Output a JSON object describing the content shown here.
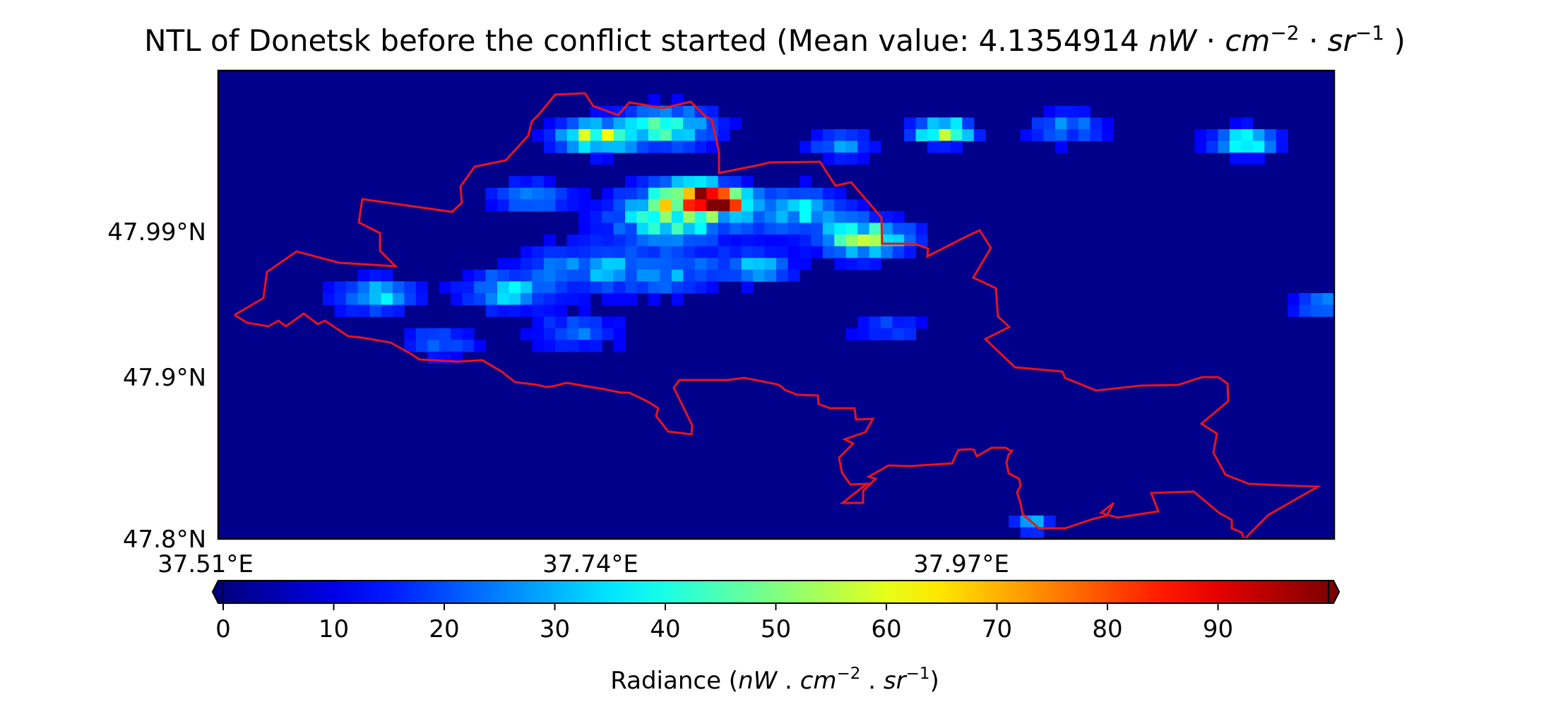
{
  "chart_data": {
    "type": "heatmap",
    "title": "NTL of Donetsk before the conflict started (Mean value: 4.1354914",
    "title_unit": {
      "base1": "nW",
      "dot1": " · ",
      "base2": "cm",
      "exp2": "−2",
      "dot2": " · ",
      "base3": "sr",
      "exp3": "−1",
      "close": " )"
    },
    "x_ticks": [
      "37.51°E",
      "37.74°E",
      "37.97°E"
    ],
    "y_ticks": [
      "47.99°N",
      "47.9°N",
      "47.8°N"
    ],
    "colorbar": {
      "colormap": "jet",
      "range": [
        0,
        100
      ],
      "ticks": [
        0,
        10,
        20,
        30,
        40,
        50,
        60,
        70,
        80,
        90
      ],
      "extend": "both",
      "label_prefix": "Radiance (",
      "label_unit": {
        "base1": "nW",
        "sep1": " . ",
        "base2": "cm",
        "exp2": "−2",
        "sep2": " . ",
        "base3": "sr",
        "exp3": "−1",
        "close": ")"
      }
    },
    "boundary_color": "#e8141c",
    "background_color": "#00008b",
    "grid": false,
    "hotspots": [
      {
        "x": 0.43,
        "y": 0.27,
        "r": 0.03,
        "v": 70
      },
      {
        "x": 0.455,
        "y": 0.28,
        "r": 0.02,
        "v": 78
      },
      {
        "x": 0.41,
        "y": 0.31,
        "r": 0.05,
        "v": 45
      },
      {
        "x": 0.34,
        "y": 0.14,
        "r": 0.03,
        "v": 55
      },
      {
        "x": 0.405,
        "y": 0.12,
        "r": 0.035,
        "v": 42
      },
      {
        "x": 0.58,
        "y": 0.36,
        "r": 0.035,
        "v": 48
      },
      {
        "x": 0.52,
        "y": 0.3,
        "r": 0.04,
        "v": 28
      },
      {
        "x": 0.33,
        "y": 0.42,
        "r": 0.045,
        "v": 22
      },
      {
        "x": 0.26,
        "y": 0.47,
        "r": 0.035,
        "v": 30
      },
      {
        "x": 0.14,
        "y": 0.48,
        "r": 0.03,
        "v": 32
      },
      {
        "x": 0.4,
        "y": 0.43,
        "r": 0.04,
        "v": 22
      },
      {
        "x": 0.48,
        "y": 0.42,
        "r": 0.03,
        "v": 26
      },
      {
        "x": 0.65,
        "y": 0.13,
        "r": 0.022,
        "v": 62
      },
      {
        "x": 0.92,
        "y": 0.15,
        "r": 0.025,
        "v": 40
      },
      {
        "x": 0.99,
        "y": 0.5,
        "r": 0.02,
        "v": 32
      },
      {
        "x": 0.73,
        "y": 0.97,
        "r": 0.015,
        "v": 30
      },
      {
        "x": 0.32,
        "y": 0.56,
        "r": 0.035,
        "v": 15
      },
      {
        "x": 0.2,
        "y": 0.58,
        "r": 0.03,
        "v": 14
      },
      {
        "x": 0.6,
        "y": 0.55,
        "r": 0.03,
        "v": 12
      },
      {
        "x": 0.76,
        "y": 0.12,
        "r": 0.03,
        "v": 18
      },
      {
        "x": 0.56,
        "y": 0.16,
        "r": 0.025,
        "v": 20
      },
      {
        "x": 0.28,
        "y": 0.27,
        "r": 0.03,
        "v": 20
      }
    ]
  }
}
